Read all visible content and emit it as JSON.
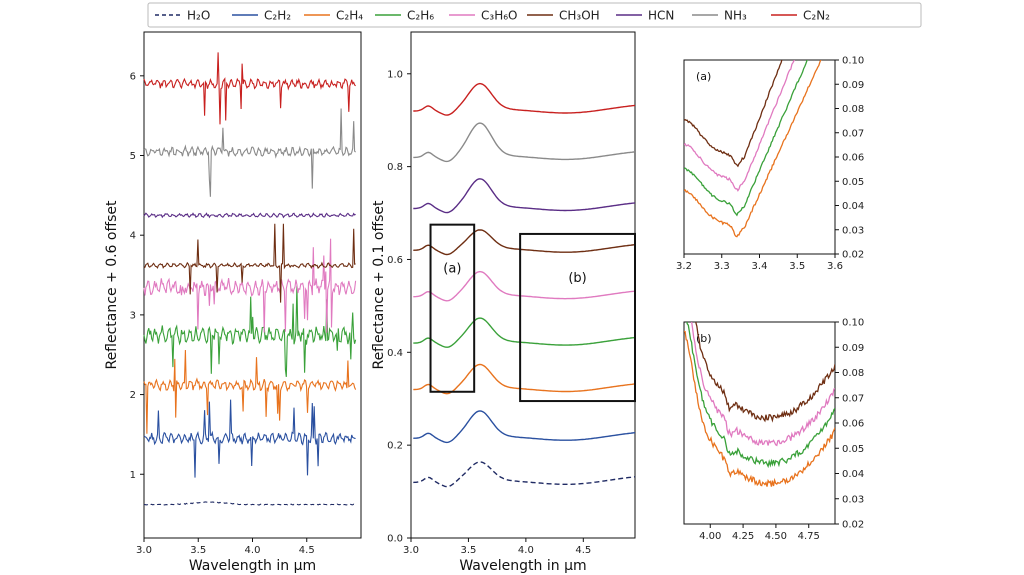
{
  "chart_data": {
    "type": "line",
    "legend": [
      {
        "key": "h2o",
        "label": "H₂O",
        "color": "#1f2a63",
        "dashed": true
      },
      {
        "key": "c2h2",
        "label": "C₂H₂",
        "color": "#2a50a0"
      },
      {
        "key": "c2h4",
        "label": "C₂H₄",
        "color": "#e8731e"
      },
      {
        "key": "c2h6",
        "label": "C₂H₆",
        "color": "#3aa13a"
      },
      {
        "key": "c3h6o",
        "label": "C₃H₆O",
        "color": "#e07ac0"
      },
      {
        "key": "ch3oh",
        "label": "CH₃OH",
        "color": "#6e2e12"
      },
      {
        "key": "hcn",
        "label": "HCN",
        "color": "#5a2d86"
      },
      {
        "key": "nh3",
        "label": "NH₃",
        "color": "#8a8a8a"
      },
      {
        "key": "c2n2",
        "label": "C₂N₂",
        "color": "#c8201f"
      }
    ],
    "panels": [
      {
        "id": "left",
        "xlabel": "Wavelength in μm",
        "ylabel": "Reflectance + 0.6 offset",
        "xlim": [
          3.0,
          5.0
        ],
        "ylim": [
          0.2,
          6.55
        ],
        "xticks": [
          3.0,
          3.5,
          4.0,
          4.5
        ],
        "xtick_labels": [
          "3.0",
          "3.5",
          "4.0",
          "4.5"
        ],
        "yticks": [
          1,
          2,
          3,
          4,
          5,
          6
        ],
        "ytick_labels": [
          "1",
          "2",
          "3",
          "4",
          "5",
          "6"
        ],
        "series": [
          {
            "name": "H₂O",
            "base": 0.62,
            "noise": 0.02,
            "spikes": 0
          },
          {
            "name": "C₂H₂",
            "base": 1.45,
            "noise": 0.12,
            "spikes": 12
          },
          {
            "name": "C₂H₄",
            "base": 2.12,
            "noise": 0.12,
            "spikes": 12
          },
          {
            "name": "C₂H₆",
            "base": 2.75,
            "noise": 0.2,
            "spikes": 14
          },
          {
            "name": "C₃H₆O",
            "base": 3.35,
            "noise": 0.18,
            "spikes": 16
          },
          {
            "name": "CH₃OH",
            "base": 3.62,
            "noise": 0.05,
            "spikes": 8
          },
          {
            "name": "HCN",
            "base": 4.25,
            "noise": 0.04,
            "spikes": 0
          },
          {
            "name": "NH₃",
            "base": 5.05,
            "noise": 0.1,
            "spikes": 6
          },
          {
            "name": "C₂N₂",
            "base": 5.9,
            "noise": 0.1,
            "spikes": 10
          }
        ]
      },
      {
        "id": "middle",
        "xlabel": "Wavelength in μm",
        "ylabel": "Reflectance + 0.1 offset",
        "xlim": [
          3.0,
          4.95
        ],
        "ylim": [
          0.0,
          1.09
        ],
        "xticks": [
          3.0,
          3.5,
          4.0,
          4.5
        ],
        "xtick_labels": [
          "3.0",
          "3.5",
          "4.0",
          "4.5"
        ],
        "yticks": [
          0.0,
          0.2,
          0.4,
          0.6,
          0.8,
          1.0
        ],
        "ytick_labels": [
          "0.0",
          "0.2",
          "0.4",
          "0.6",
          "0.8",
          "1.0"
        ],
        "series": [
          {
            "name": "H₂O",
            "base": 0.13,
            "peak": 0.04
          },
          {
            "name": "C₂H₂",
            "base": 0.225,
            "peak": 0.055
          },
          {
            "name": "C₂H₄",
            "base": 0.33,
            "peak": 0.05
          },
          {
            "name": "C₂H₆",
            "base": 0.43,
            "peak": 0.05
          },
          {
            "name": "C₃H₆O",
            "base": 0.53,
            "peak": 0.05
          },
          {
            "name": "CH₃OH",
            "base": 0.63,
            "peak": 0.04
          },
          {
            "name": "HCN",
            "base": 0.72,
            "peak": 0.06
          },
          {
            "name": "NH₃",
            "base": 0.83,
            "peak": 0.07
          },
          {
            "name": "C₂N₂",
            "base": 0.93,
            "peak": 0.055
          }
        ],
        "boxes": [
          {
            "label": "(a)",
            "x": [
              3.17,
              3.55
            ],
            "y": [
              0.315,
              0.675
            ]
          },
          {
            "label": "(b)",
            "x": [
              3.95,
              4.95
            ],
            "y": [
              0.295,
              0.655
            ]
          }
        ]
      },
      {
        "id": "inset-a",
        "tag": "(a)",
        "xlim": [
          3.2,
          3.6
        ],
        "ylim": [
          0.02,
          0.1
        ],
        "xticks": [
          3.2,
          3.3,
          3.4,
          3.5,
          3.6
        ],
        "xtick_labels": [
          "3.2",
          "3.3",
          "3.4",
          "3.5",
          "3.6"
        ],
        "yticks": [
          0.02,
          0.03,
          0.04,
          0.05,
          0.06,
          0.07,
          0.08,
          0.09,
          0.1
        ],
        "ytick_labels": [
          "0.02",
          "0.03",
          "0.04",
          "0.05",
          "0.06",
          "0.07",
          "0.08",
          "0.09",
          "0.10"
        ],
        "series": [
          "C₂H₄",
          "C₂H₆",
          "C₃H₆O",
          "CH₃OH"
        ]
      },
      {
        "id": "inset-b",
        "tag": "(b)",
        "xlim": [
          3.8,
          4.95
        ],
        "ylim": [
          0.02,
          0.1
        ],
        "xticks": [
          4.0,
          4.25,
          4.5,
          4.75
        ],
        "xtick_labels": [
          "4.00",
          "4.25",
          "4.50",
          "4.75"
        ],
        "yticks": [
          0.02,
          0.03,
          0.04,
          0.05,
          0.06,
          0.07,
          0.08,
          0.09,
          0.1
        ],
        "ytick_labels": [
          "0.02",
          "0.03",
          "0.04",
          "0.05",
          "0.06",
          "0.07",
          "0.08",
          "0.09",
          "0.10"
        ],
        "series": [
          "C₂H₄",
          "C₂H₆",
          "C₃H₆O",
          "CH₃OH"
        ]
      }
    ]
  }
}
